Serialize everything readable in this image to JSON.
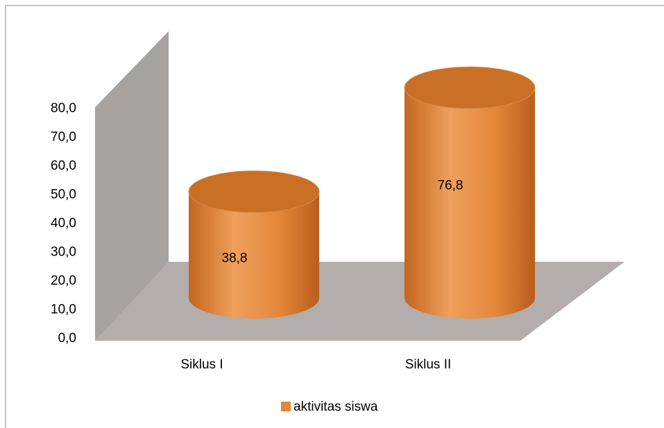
{
  "chart_data": {
    "type": "bar",
    "categories": [
      "Siklus I",
      "Siklus II"
    ],
    "series": [
      {
        "name": "aktivitas siswa",
        "color": "#e3873a",
        "values": [
          38.8,
          76.8
        ],
        "value_labels": [
          "38,8",
          "76,8"
        ]
      }
    ],
    "ylim": [
      0,
      80
    ],
    "yticks": [
      {
        "value": 0,
        "label": "0,0"
      },
      {
        "value": 10,
        "label": "10,0"
      },
      {
        "value": 20,
        "label": "20,0"
      },
      {
        "value": 30,
        "label": "30,0"
      },
      {
        "value": 40,
        "label": "40,0"
      },
      {
        "value": 50,
        "label": "50,0"
      },
      {
        "value": 60,
        "label": "60,0"
      },
      {
        "value": 70,
        "label": "70,0"
      },
      {
        "value": 80,
        "label": "80,0"
      }
    ],
    "grid": false,
    "legend": "bottom"
  }
}
